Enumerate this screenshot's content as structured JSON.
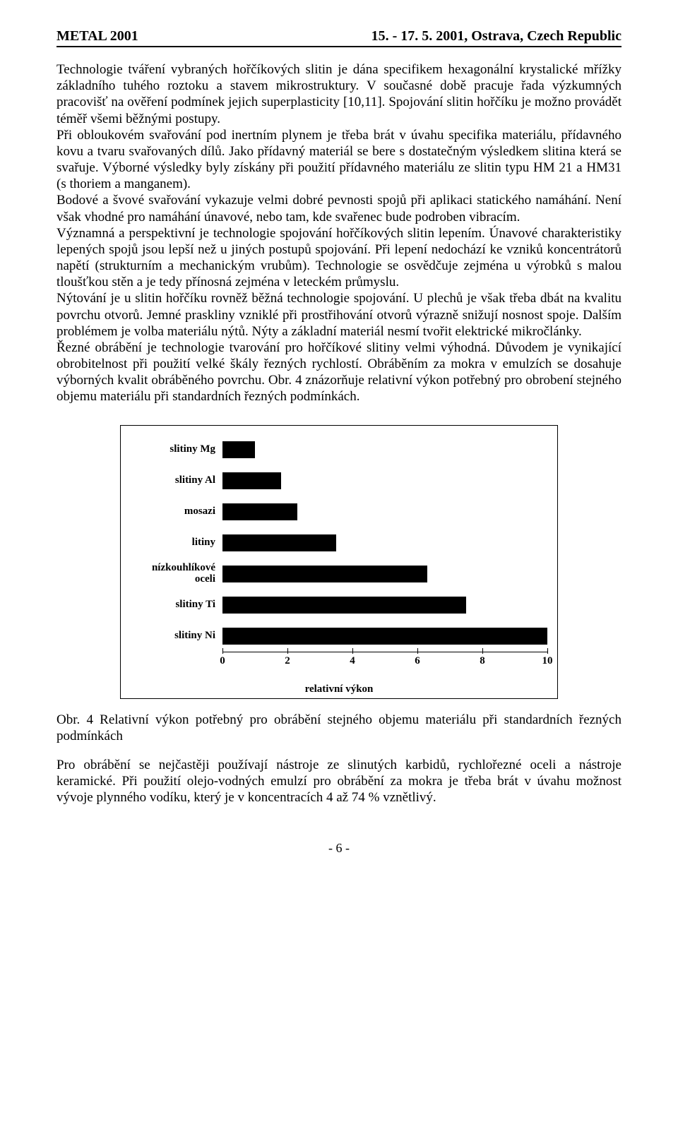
{
  "header": {
    "left": "METAL 2001",
    "right": "15. - 17. 5. 2001, Ostrava, Czech Republic"
  },
  "paragraphs": {
    "p1": "Technologie tváření vybraných hořčíkových slitin je dána specifikem hexagonální krystalické mřížky základního tuhého roztoku a stavem mikrostruktury. V současné době pracuje řada výzkumných pracovišť na ověření podmínek jejich superplasticity [10,11]. Spojování slitin hořčíku je možno provádět téměř všemi běžnými postupy.",
    "p2": "Při obloukovém svařování pod inertním plynem je třeba brát v úvahu specifika materiálu, přídavného kovu a tvaru svařovaných dílů. Jako přídavný materiál se bere s dostatečným výsledkem slitina která se svařuje. Výborné výsledky byly získány při použití přídavného materiálu ze slitin typu HM 21 a HM31 (s thoriem a manganem).",
    "p3": "Bodové a švové svařování vykazuje velmi dobré pevnosti spojů při aplikaci statického namáhání. Není však vhodné pro namáhání únavové, nebo tam, kde svařenec bude podroben vibracím.",
    "p4": "Významná a perspektivní je technologie spojování hořčíkových slitin lepením. Únavové charakteristiky lepených spojů jsou lepší než u jiných postupů spojování. Při lepení nedochází ke vzniků koncentrátorů napětí (strukturním a mechanickým vrubům). Technologie se osvědčuje zejména u výrobků s malou tloušťkou stěn a je tedy přínosná zejména v leteckém průmyslu.",
    "p5": "Nýtování je u slitin hořčíku rovněž běžná technologie spojování. U plechů je však třeba dbát na kvalitu povrchu otvorů. Jemné praskliny vzniklé při prostřihování otvorů výrazně snižují nosnost spoje. Dalším problémem je volba materiálu nýtů. Nýty a základní materiál nesmí tvořit elektrické mikročlánky.",
    "p6": "Řezné obrábění je technologie tvarování pro hořčíkové slitiny velmi výhodná. Důvodem je vynikající obrobitelnost při použití velké škály řezných rychlostí. Obráběním za mokra v emulzích se dosahuje výborných kvalit obráběného povrchu. Obr. 4 znázorňuje relativní výkon potřebný pro obrobení stejného objemu materiálu při standardních řezných podmínkách."
  },
  "chart": {
    "type": "bar",
    "orientation": "horizontal",
    "categories": [
      "slitiny Mg",
      "slitiny Al",
      "mosazi",
      "litiny",
      "nízkouhlíkové oceli",
      "slitiny Ti",
      "slitiny Ni"
    ],
    "values": [
      1.0,
      1.8,
      2.3,
      3.5,
      6.3,
      7.5,
      10.0
    ],
    "xlim": [
      0,
      10
    ],
    "xticks": [
      0,
      2,
      4,
      6,
      8,
      10
    ],
    "x_title": "relativní výkon",
    "bar_color": "#000000",
    "background_color": "#ffffff",
    "border_color": "#000000",
    "label_fontsize": 15,
    "label_fontweight": "bold"
  },
  "caption": "Obr. 4  Relativní výkon potřebný pro obrábění stejného objemu materiálu při standardních řezných podmínkách",
  "post": "Pro obrábění se nejčastěji používají nástroje ze slinutých karbidů, rychlořezné oceli a nástroje keramické. Při použití olejo-vodných emulzí pro obrábění za mokra je třeba brát v úvahu možnost vývoje plynného vodíku, který je v koncentracích 4 až 74 % vznětlivý.",
  "page_number": "- 6 -"
}
